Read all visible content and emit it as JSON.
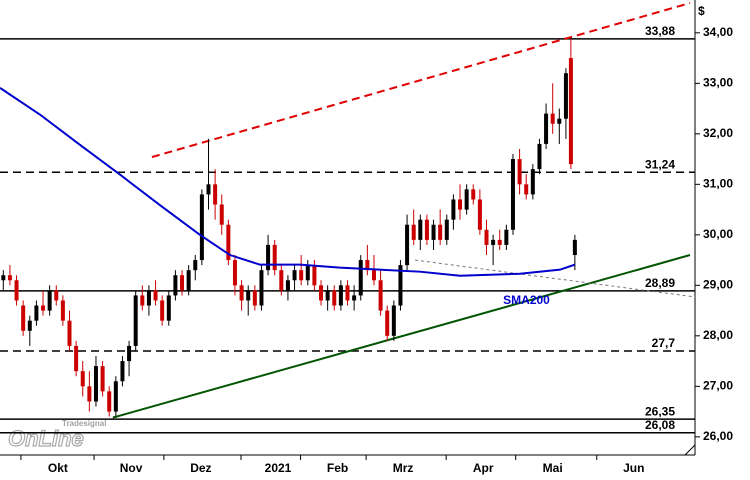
{
  "chart_data": {
    "type": "candlestick",
    "y_unit": "$",
    "xlim": [
      0,
      210
    ],
    "xticks": [
      {
        "value": 17.5,
        "label": "Okt"
      },
      {
        "value": 39.6,
        "label": "Nov"
      },
      {
        "value": 60.7,
        "label": "Dez"
      },
      {
        "value": 84,
        "label": "2021"
      },
      {
        "value": 102,
        "label": "Feb"
      },
      {
        "value": 121.8,
        "label": "Mrz"
      },
      {
        "value": 146,
        "label": "Apr"
      },
      {
        "value": 167,
        "label": "Mai"
      },
      {
        "value": 191.5,
        "label": "Jun"
      }
    ],
    "ylim": [
      25.64,
      34.65
    ],
    "yticks": [
      {
        "value": 26,
        "label": "26,00"
      },
      {
        "value": 27,
        "label": "27,00"
      },
      {
        "value": 28,
        "label": "28,00"
      },
      {
        "value": 29,
        "label": "29,00"
      },
      {
        "value": 30,
        "label": "30,00"
      },
      {
        "value": 31,
        "label": "31,00"
      },
      {
        "value": 32,
        "label": "32,00"
      },
      {
        "value": 33,
        "label": "33,00"
      },
      {
        "value": 34,
        "label": "34,00"
      }
    ],
    "up_color": "#000000",
    "down_color": "#cc0000",
    "candles": {
      "x": [
        1,
        3,
        5,
        7,
        9,
        11,
        13,
        15,
        17,
        19,
        21,
        23,
        25,
        27,
        29,
        31,
        33,
        35,
        37,
        39,
        41,
        43,
        45,
        47,
        49,
        51,
        53,
        55,
        57,
        59,
        61,
        63,
        65,
        67,
        69,
        71,
        73,
        75,
        77,
        79,
        81,
        83,
        85,
        87,
        89,
        91,
        93,
        95,
        97,
        99,
        101,
        103,
        105,
        107,
        109,
        111,
        113,
        115,
        117,
        119,
        121,
        123,
        125,
        127,
        129,
        131,
        133,
        135,
        137,
        139,
        141,
        143,
        145,
        147,
        149,
        151,
        153,
        155,
        157,
        159,
        161,
        163,
        165,
        167,
        169,
        171,
        172.5,
        173.7
      ],
      "open": [
        29.1,
        29.2,
        29.1,
        28.6,
        28.1,
        28.3,
        28.6,
        28.5,
        28.9,
        28.7,
        28.3,
        27.8,
        27.3,
        27.0,
        26.7,
        27.4,
        26.9,
        26.5,
        27.1,
        27.5,
        27.8,
        28.8,
        28.6,
        28.9,
        28.7,
        28.3,
        28.8,
        29.2,
        28.9,
        29.3,
        29.5,
        30.8,
        31.0,
        30.6,
        30.2,
        29.5,
        29.0,
        28.7,
        28.9,
        28.6,
        29.3,
        29.8,
        29.3,
        28.9,
        29.1,
        29.3,
        29.1,
        29.4,
        29.0,
        28.7,
        28.9,
        28.6,
        29.0,
        28.7,
        28.8,
        29.5,
        29.3,
        29.1,
        28.5,
        28.0,
        28.6,
        29.4,
        30.2,
        29.9,
        30.3,
        29.9,
        30.2,
        29.9,
        30.3,
        30.7,
        30.5,
        30.9,
        30.7,
        30.1,
        29.8,
        29.9,
        29.8,
        30.1,
        31.5,
        31.0,
        30.8,
        31.3,
        31.8,
        32.4,
        32.2,
        32.3,
        33.5,
        29.6
      ],
      "high": [
        29.3,
        29.4,
        29.2,
        28.7,
        28.4,
        28.7,
        28.9,
        29.0,
        29.0,
        28.8,
        28.5,
        27.9,
        27.5,
        27.3,
        27.6,
        27.5,
        27.0,
        27.2,
        27.6,
        27.9,
        28.9,
        29.0,
        29.0,
        29.1,
        28.8,
        28.9,
        29.3,
        29.3,
        29.4,
        29.6,
        30.9,
        31.9,
        31.3,
        30.8,
        30.3,
        29.6,
        29.1,
        29.0,
        29.0,
        29.4,
        30.0,
        29.9,
        29.4,
        29.2,
        29.4,
        29.6,
        29.5,
        29.5,
        29.1,
        29.0,
        29.0,
        29.1,
        29.1,
        29.0,
        29.6,
        29.8,
        29.6,
        29.3,
        28.6,
        28.7,
        29.5,
        30.4,
        30.5,
        30.4,
        30.4,
        30.3,
        30.5,
        30.4,
        30.8,
        31.0,
        31.0,
        31.0,
        30.9,
        30.3,
        30.0,
        30.1,
        30.2,
        31.6,
        31.7,
        31.2,
        31.4,
        31.9,
        32.6,
        33.0,
        32.5,
        33.3,
        33.88,
        30.0
      ],
      "low": [
        28.9,
        29.0,
        28.6,
        28.0,
        27.8,
        28.2,
        28.4,
        28.4,
        28.6,
        28.2,
        27.7,
        27.2,
        26.8,
        26.5,
        26.6,
        26.8,
        26.4,
        26.4,
        27.0,
        27.2,
        27.7,
        28.5,
        28.4,
        28.6,
        28.2,
        28.2,
        28.7,
        28.8,
        28.8,
        29.1,
        29.4,
        30.5,
        30.3,
        30.0,
        29.4,
        28.8,
        28.5,
        28.4,
        28.5,
        28.5,
        29.2,
        29.2,
        28.8,
        28.7,
        28.9,
        29.0,
        29.0,
        28.9,
        28.6,
        28.5,
        28.5,
        28.5,
        28.6,
        28.5,
        28.7,
        29.2,
        29.0,
        28.4,
        27.9,
        27.9,
        28.5,
        29.3,
        29.8,
        29.7,
        29.8,
        29.7,
        29.8,
        29.8,
        30.1,
        30.3,
        30.4,
        30.6,
        30.0,
        29.6,
        29.4,
        29.7,
        29.7,
        30.0,
        30.8,
        30.7,
        30.7,
        31.2,
        31.7,
        32.0,
        31.8,
        31.9,
        31.3,
        29.3
      ],
      "close": [
        29.2,
        29.1,
        28.7,
        28.1,
        28.3,
        28.6,
        28.5,
        28.9,
        28.7,
        28.3,
        27.8,
        27.3,
        27.0,
        26.7,
        27.4,
        26.9,
        26.5,
        27.1,
        27.5,
        27.8,
        28.8,
        28.6,
        28.9,
        28.7,
        28.3,
        28.8,
        29.2,
        28.9,
        29.3,
        29.5,
        30.8,
        31.0,
        30.6,
        30.2,
        29.5,
        29.0,
        28.7,
        28.9,
        28.6,
        29.3,
        29.8,
        29.3,
        28.9,
        29.1,
        29.3,
        29.1,
        29.4,
        29.0,
        28.7,
        28.9,
        28.6,
        29.0,
        28.7,
        28.8,
        29.5,
        29.3,
        29.1,
        28.5,
        28.0,
        28.6,
        29.4,
        30.2,
        29.9,
        30.3,
        29.9,
        30.2,
        29.9,
        30.3,
        30.7,
        30.5,
        30.9,
        30.7,
        30.1,
        29.8,
        29.9,
        29.8,
        30.1,
        31.5,
        31.0,
        30.8,
        31.3,
        31.8,
        32.4,
        32.2,
        32.3,
        33.2,
        31.4,
        29.9
      ]
    },
    "lines": [
      {
        "name": "SMA200",
        "color": "#0000cc",
        "x": [
          0,
          12.1,
          24.2,
          36.3,
          48.3,
          60.4,
          69.5,
          78.5,
          90.6,
          102.7,
          114.8,
          126.9,
          139,
          157.1,
          169.2,
          173.7
        ],
        "values": [
          32.91,
          32.38,
          31.78,
          31.19,
          30.59,
          30.0,
          29.6,
          29.41,
          29.41,
          29.35,
          29.31,
          29.27,
          29.19,
          29.23,
          29.31,
          29.41
        ]
      }
    ],
    "levels": [
      {
        "value": 33.88,
        "label": "33,88",
        "style": "solid"
      },
      {
        "value": 31.24,
        "label": "31,24",
        "style": "dashed"
      },
      {
        "value": 28.89,
        "label": "28,89",
        "style": "solid"
      },
      {
        "value": 27.7,
        "label": "27,7",
        "style": "dashed"
      },
      {
        "value": 26.35,
        "label": "26,35",
        "style": "solid"
      },
      {
        "value": 26.08,
        "label": "26,08",
        "style": "solid"
      }
    ],
    "trendlines": [
      {
        "color": "#e00000",
        "style": "dashed",
        "x": [
          45.9,
          208.5
        ],
        "values": [
          31.54,
          34.59
        ]
      },
      {
        "color": "#005500",
        "style": "solid",
        "x": [
          34.1,
          208.5
        ],
        "values": [
          26.38,
          29.6
        ]
      },
      {
        "color": "#777777",
        "style": "dotted",
        "x": [
          125.4,
          210
        ],
        "values": [
          29.5,
          28.77
        ]
      }
    ],
    "logo": {
      "brand": "Tradesignal",
      "name": "OnLine"
    }
  }
}
